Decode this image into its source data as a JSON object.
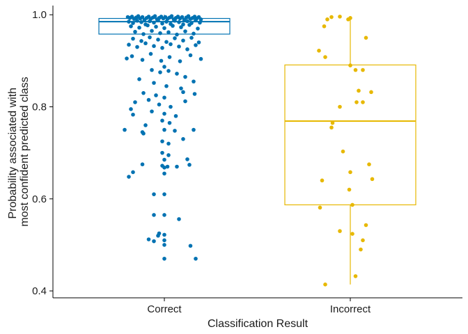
{
  "chart_data": {
    "type": "box-jitter",
    "xlabel": "Classification Result",
    "ylabel_lines": [
      "Probability associated with",
      "most confident predicted class"
    ],
    "ylim": [
      0.385,
      1.02
    ],
    "yticks": [
      0.4,
      0.6,
      0.8,
      1.0
    ],
    "ytick_labels": [
      "0.4",
      "0.6",
      "0.8",
      "1.0"
    ],
    "grid": false,
    "legend": "none",
    "categories": [
      "Correct",
      "Incorrect"
    ],
    "series": [
      {
        "color": "#0072B2",
        "box": {
          "lower_whisker": 0.958,
          "q1": 0.958,
          "median": 0.985,
          "q3": 0.992,
          "upper_whisker": 1.0
        },
        "points": [
          [
            -0.35,
            0.995
          ],
          [
            -0.33,
            0.993
          ],
          [
            -0.31,
            0.996
          ],
          [
            -0.29,
            0.991
          ],
          [
            -0.27,
            0.994
          ],
          [
            -0.25,
            0.997
          ],
          [
            -0.23,
            0.992
          ],
          [
            -0.21,
            0.995
          ],
          [
            -0.19,
            0.989
          ],
          [
            -0.17,
            0.993
          ],
          [
            -0.15,
            0.996
          ],
          [
            -0.13,
            0.991
          ],
          [
            -0.11,
            0.994
          ],
          [
            -0.09,
            0.997
          ],
          [
            -0.07,
            0.99
          ],
          [
            -0.05,
            0.993
          ],
          [
            -0.03,
            0.996
          ],
          [
            -0.01,
            0.992
          ],
          [
            0.01,
            0.995
          ],
          [
            0.03,
            0.991
          ],
          [
            0.05,
            0.994
          ],
          [
            0.07,
            0.997
          ],
          [
            0.09,
            0.99
          ],
          [
            0.11,
            0.993
          ],
          [
            0.13,
            0.996
          ],
          [
            0.15,
            0.992
          ],
          [
            0.17,
            0.995
          ],
          [
            0.19,
            0.989
          ],
          [
            0.21,
            0.994
          ],
          [
            0.23,
            0.997
          ],
          [
            0.25,
            0.991
          ],
          [
            0.27,
            0.993
          ],
          [
            0.29,
            0.996
          ],
          [
            0.31,
            0.992
          ],
          [
            0.33,
            0.995
          ],
          [
            0.35,
            0.99
          ],
          [
            -0.34,
            0.985
          ],
          [
            -0.3,
            0.982
          ],
          [
            -0.26,
            0.987
          ],
          [
            -0.22,
            0.984
          ],
          [
            -0.18,
            0.979
          ],
          [
            -0.14,
            0.986
          ],
          [
            -0.1,
            0.983
          ],
          [
            -0.06,
            0.988
          ],
          [
            -0.02,
            0.981
          ],
          [
            0.02,
            0.985
          ],
          [
            0.06,
            0.98
          ],
          [
            0.1,
            0.987
          ],
          [
            0.14,
            0.984
          ],
          [
            0.18,
            0.979
          ],
          [
            0.22,
            0.986
          ],
          [
            0.26,
            0.982
          ],
          [
            0.3,
            0.988
          ],
          [
            0.34,
            0.983
          ],
          [
            -0.32,
            0.975
          ],
          [
            -0.24,
            0.972
          ],
          [
            -0.16,
            0.977
          ],
          [
            -0.08,
            0.974
          ],
          [
            0.0,
            0.971
          ],
          [
            0.08,
            0.976
          ],
          [
            0.16,
            0.973
          ],
          [
            0.24,
            0.978
          ],
          [
            0.32,
            0.97
          ],
          [
            -0.28,
            0.963
          ],
          [
            -0.2,
            0.958
          ],
          [
            -0.12,
            0.965
          ],
          [
            -0.04,
            0.96
          ],
          [
            0.04,
            0.962
          ],
          [
            0.12,
            0.957
          ],
          [
            0.2,
            0.964
          ],
          [
            0.28,
            0.959
          ],
          [
            -0.3,
            0.948
          ],
          [
            -0.22,
            0.943
          ],
          [
            -0.14,
            0.951
          ],
          [
            -0.06,
            0.946
          ],
          [
            0.02,
            0.941
          ],
          [
            0.1,
            0.949
          ],
          [
            0.18,
            0.944
          ],
          [
            0.26,
            0.95
          ],
          [
            0.33,
            0.94
          ],
          [
            -0.34,
            0.935
          ],
          [
            -0.26,
            0.93
          ],
          [
            -0.18,
            0.938
          ],
          [
            -0.1,
            0.932
          ],
          [
            -0.02,
            0.928
          ],
          [
            0.06,
            0.936
          ],
          [
            0.14,
            0.931
          ],
          [
            0.22,
            0.925
          ],
          [
            0.3,
            0.934
          ],
          [
            -0.36,
            0.905
          ],
          [
            -0.31,
            0.91
          ],
          [
            -0.21,
            0.902
          ],
          [
            -0.13,
            0.915
          ],
          [
            -0.03,
            0.9
          ],
          [
            0.05,
            0.908
          ],
          [
            0.15,
            0.899
          ],
          [
            0.25,
            0.912
          ],
          [
            0.35,
            0.904
          ],
          [
            -0.12,
            0.88
          ],
          [
            -0.04,
            0.875
          ],
          [
            0.0,
            0.887
          ],
          [
            0.04,
            0.878
          ],
          [
            0.12,
            0.872
          ],
          [
            0.2,
            0.865
          ],
          [
            -0.24,
            0.86
          ],
          [
            -0.1,
            0.852
          ],
          [
            0.02,
            0.845
          ],
          [
            0.16,
            0.84
          ],
          [
            0.28,
            0.855
          ],
          [
            -0.2,
            0.83
          ],
          [
            -0.08,
            0.825
          ],
          [
            0.0,
            0.82
          ],
          [
            0.18,
            0.832
          ],
          [
            0.29,
            0.828
          ],
          [
            -0.28,
            0.81
          ],
          [
            -0.15,
            0.815
          ],
          [
            -0.05,
            0.805
          ],
          [
            0.06,
            0.8
          ],
          [
            0.2,
            0.812
          ],
          [
            -0.32,
            0.795
          ],
          [
            -0.3,
            0.783
          ],
          [
            -0.12,
            0.79
          ],
          [
            0.0,
            0.785
          ],
          [
            0.11,
            0.78
          ],
          [
            -0.02,
            0.77
          ],
          [
            0.05,
            0.765
          ],
          [
            -0.18,
            0.76
          ],
          [
            -0.38,
            0.75
          ],
          [
            -0.21,
            0.745
          ],
          [
            -0.2,
            0.742
          ],
          [
            0.0,
            0.75
          ],
          [
            0.1,
            0.748
          ],
          [
            0.28,
            0.75
          ],
          [
            -0.02,
            0.725
          ],
          [
            0.04,
            0.72
          ],
          [
            0.18,
            0.73
          ],
          [
            -0.02,
            0.7
          ],
          [
            0.04,
            0.695
          ],
          [
            0.0,
            0.685
          ],
          [
            0.22,
            0.686
          ],
          [
            -0.21,
            0.675
          ],
          [
            -0.02,
            0.672
          ],
          [
            0.0,
            0.668
          ],
          [
            0.03,
            0.67
          ],
          [
            0.12,
            0.67
          ],
          [
            0.24,
            0.674
          ],
          [
            -0.3,
            0.658
          ],
          [
            -0.34,
            0.648
          ],
          [
            0.0,
            0.655
          ],
          [
            -0.1,
            0.61
          ],
          [
            0.0,
            0.61
          ],
          [
            -0.1,
            0.565
          ],
          [
            0.0,
            0.565
          ],
          [
            0.14,
            0.556
          ],
          [
            -0.05,
            0.525
          ],
          [
            -0.06,
            0.52
          ],
          [
            -0.15,
            0.512
          ],
          [
            -0.1,
            0.508
          ],
          [
            0.0,
            0.522
          ],
          [
            0.0,
            0.51
          ],
          [
            0.0,
            0.5
          ],
          [
            0.25,
            0.498
          ],
          [
            0.0,
            0.47
          ],
          [
            0.3,
            0.47
          ]
        ]
      },
      {
        "color": "#E7B800",
        "box": {
          "lower_whisker": 0.414,
          "q1": 0.587,
          "median": 0.769,
          "q3": 0.891,
          "upper_whisker": 0.996
        },
        "points": [
          [
            -0.25,
            0.975
          ],
          [
            -0.22,
            0.99
          ],
          [
            -0.18,
            0.995
          ],
          [
            -0.1,
            0.996
          ],
          [
            0.0,
            0.993
          ],
          [
            -0.02,
            0.99
          ],
          [
            0.15,
            0.95
          ],
          [
            -0.3,
            0.922
          ],
          [
            -0.24,
            0.908
          ],
          [
            0.0,
            0.89
          ],
          [
            0.05,
            0.88
          ],
          [
            0.12,
            0.88
          ],
          [
            0.08,
            0.835
          ],
          [
            0.2,
            0.832
          ],
          [
            0.06,
            0.81
          ],
          [
            0.12,
            0.81
          ],
          [
            -0.1,
            0.8
          ],
          [
            -0.17,
            0.765
          ],
          [
            -0.18,
            0.755
          ],
          [
            -0.07,
            0.703
          ],
          [
            0.18,
            0.675
          ],
          [
            0.0,
            0.658
          ],
          [
            0.21,
            0.643
          ],
          [
            -0.27,
            0.64
          ],
          [
            -0.01,
            0.62
          ],
          [
            0.02,
            0.587
          ],
          [
            -0.29,
            0.581
          ],
          [
            0.15,
            0.543
          ],
          [
            -0.1,
            0.53
          ],
          [
            0.02,
            0.524
          ],
          [
            0.12,
            0.51
          ],
          [
            0.1,
            0.49
          ],
          [
            0.05,
            0.432
          ],
          [
            -0.24,
            0.414
          ]
        ]
      }
    ]
  }
}
